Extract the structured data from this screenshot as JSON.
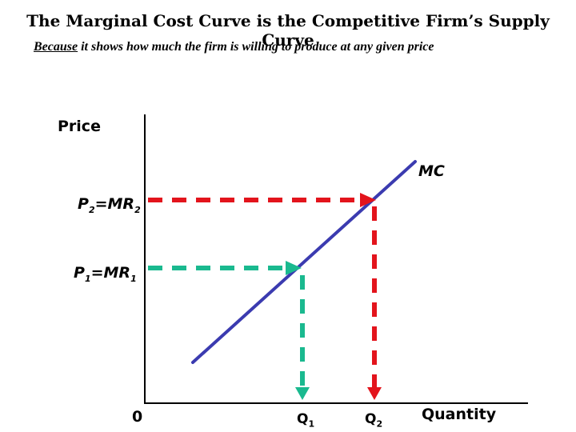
{
  "title": "The Marginal Cost Curve is the Competitive Firm’s Supply Curve",
  "subtitle": {
    "emphasis": "Because",
    "rest": " it shows how much the firm is willing to produce at any given price"
  },
  "axes": {
    "y_label": "Price",
    "x_label": "Quantity",
    "origin_label": "0"
  },
  "curve": {
    "label": "MC",
    "color": "#3b3bb0"
  },
  "levels": [
    {
      "id": "high",
      "price_main": "P",
      "price_sub": "2",
      "mr_main": "=MR",
      "mr_sub": "2",
      "q_main": "Q",
      "q_sub": "2",
      "color": "#e3141c"
    },
    {
      "id": "low",
      "price_main": "P",
      "price_sub": "1",
      "mr_main": "=MR",
      "mr_sub": "1",
      "q_main": "Q",
      "q_sub": "1",
      "color": "#1ab98f"
    }
  ]
}
